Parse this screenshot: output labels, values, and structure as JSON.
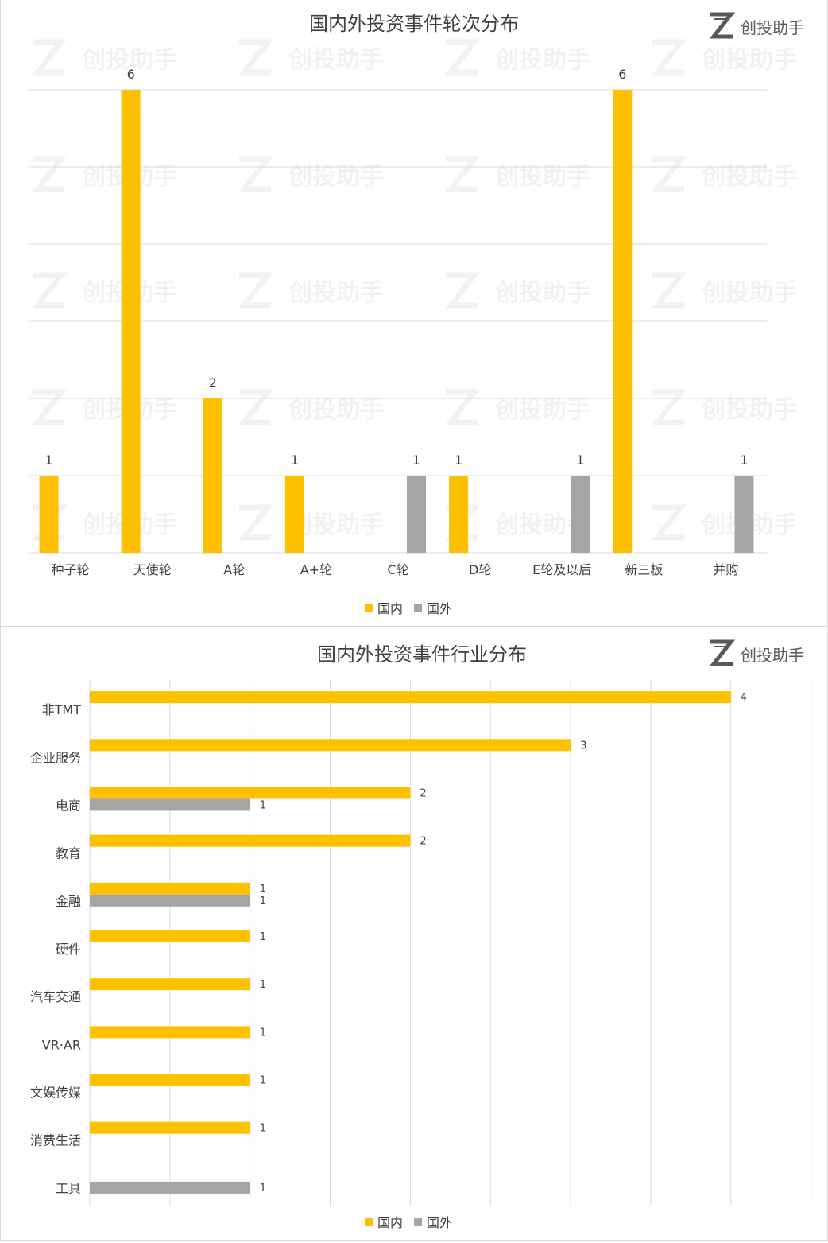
{
  "brand": {
    "logo_text": "创投助手",
    "watermark_text": "创投助手"
  },
  "colors": {
    "domestic": "#FFC000",
    "foreign": "#A5A5A5",
    "grid": "#D9D9D9",
    "text": "#404040"
  },
  "chart_data": [
    {
      "type": "bar",
      "orientation": "vertical",
      "title": "国内外投资事件轮次分布",
      "categories": [
        "种子轮",
        "天使轮",
        "A轮",
        "A+轮",
        "C轮",
        "D轮",
        "E轮及以后",
        "新三板",
        "并购"
      ],
      "series": [
        {
          "name": "国内",
          "values": [
            1,
            6,
            2,
            1,
            null,
            1,
            null,
            6,
            null
          ]
        },
        {
          "name": "国外",
          "values": [
            null,
            null,
            null,
            null,
            1,
            null,
            1,
            null,
            1
          ]
        }
      ],
      "ylim": [
        0,
        6
      ],
      "grid": true,
      "legend": "bottom",
      "data_labels": true
    },
    {
      "type": "bar",
      "orientation": "horizontal",
      "title": "国内外投资事件行业分布",
      "categories": [
        "非TMT",
        "企业服务",
        "电商",
        "教育",
        "金融",
        "硬件",
        "汽车交通",
        "VR·AR",
        "文娱传媒",
        "消费生活",
        "工具"
      ],
      "series": [
        {
          "name": "国内",
          "values": [
            4,
            3,
            2,
            2,
            1,
            1,
            1,
            1,
            1,
            1,
            null
          ]
        },
        {
          "name": "国外",
          "values": [
            null,
            null,
            1,
            null,
            1,
            null,
            null,
            null,
            null,
            null,
            1
          ]
        }
      ],
      "xlim": [
        0,
        4.5
      ],
      "grid": true,
      "legend": "bottom",
      "data_labels": true
    }
  ]
}
